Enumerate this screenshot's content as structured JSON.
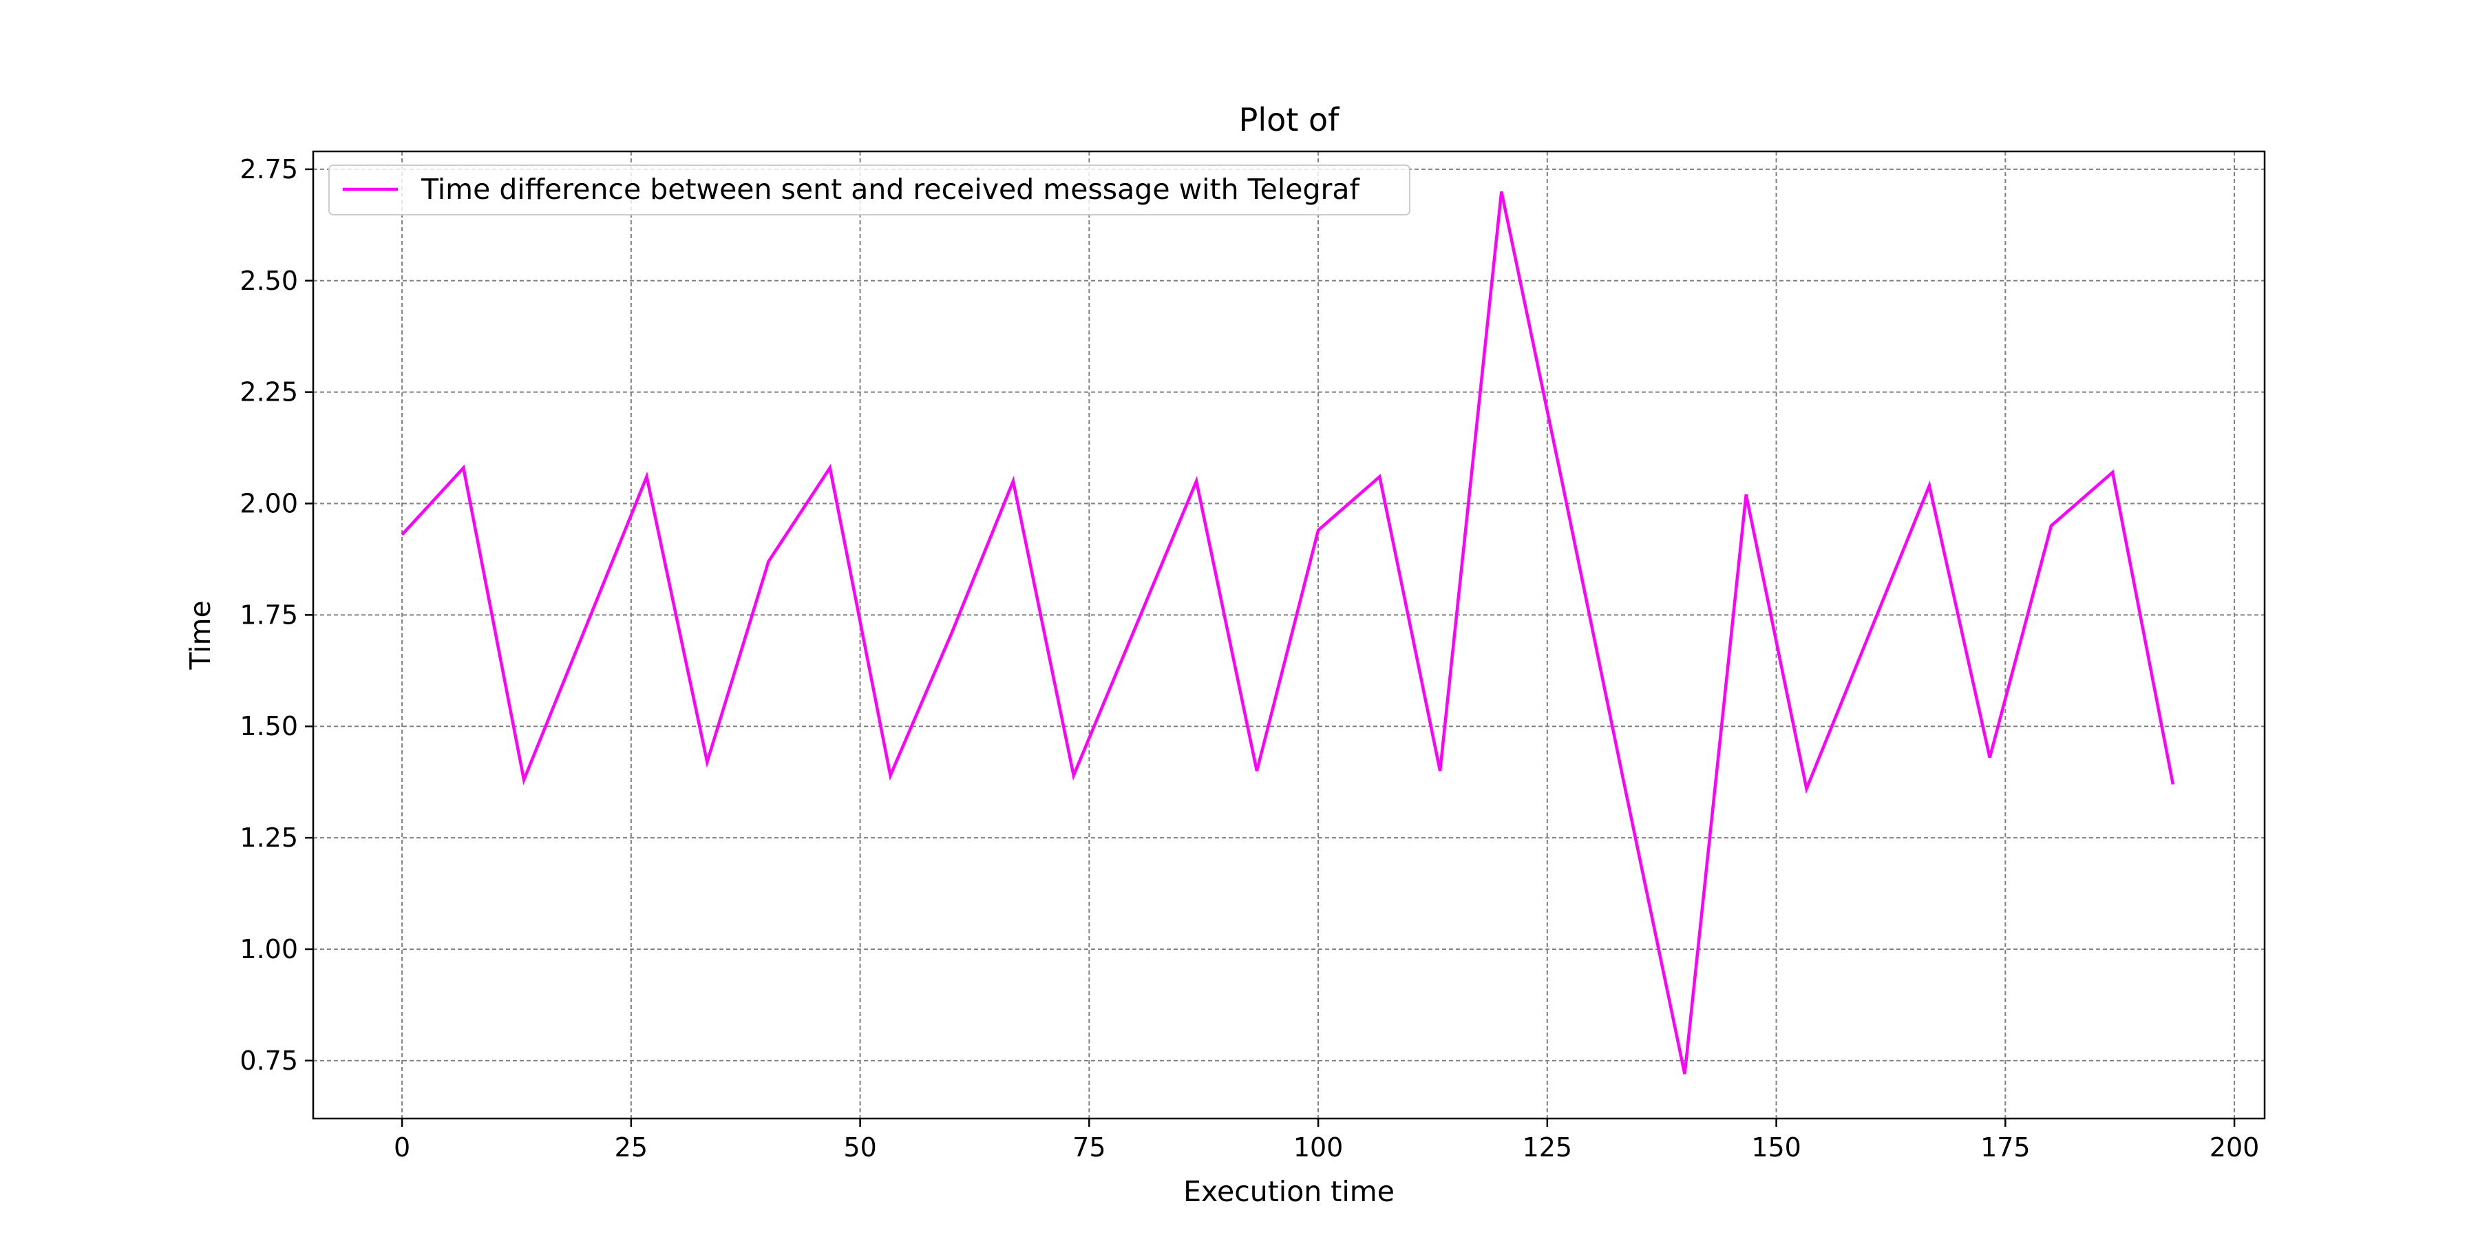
{
  "chart_data": {
    "type": "line",
    "title": "Plot of",
    "xlabel": "Execution time",
    "ylabel": "Time",
    "xlim": [
      -9.7,
      203.3
    ],
    "ylim": [
      0.62,
      2.79
    ],
    "grid": true,
    "legend_position": "top-left",
    "xticks": [
      0,
      25,
      50,
      75,
      100,
      125,
      150,
      175,
      200
    ],
    "xtick_labels": [
      "0",
      "25",
      "50",
      "75",
      "100",
      "125",
      "150",
      "175",
      "200"
    ],
    "yticks": [
      0.75,
      1.0,
      1.25,
      1.5,
      1.75,
      2.0,
      2.25,
      2.5,
      2.75
    ],
    "ytick_labels": [
      "0.75",
      "1.00",
      "1.25",
      "1.50",
      "1.75",
      "2.00",
      "2.25",
      "2.50",
      "2.75"
    ],
    "series": [
      {
        "name": "Time difference between sent and received message with Telegraf",
        "color": "#ff00ff",
        "x": [
          0,
          6.7,
          13.3,
          20,
          26.7,
          33.3,
          40,
          46.7,
          53.3,
          60,
          66.7,
          73.3,
          80,
          86.7,
          93.3,
          100,
          106.7,
          113.3,
          120,
          126.7,
          133.3,
          140,
          146.7,
          153.3,
          160,
          166.7,
          173.3,
          180,
          186.7,
          193.3
        ],
        "y": [
          1.93,
          2.08,
          1.38,
          1.72,
          2.06,
          1.42,
          1.87,
          2.08,
          1.39,
          1.71,
          2.05,
          1.39,
          1.72,
          2.05,
          1.4,
          1.94,
          2.06,
          1.4,
          2.7,
          2.04,
          1.38,
          0.72,
          2.02,
          1.36,
          1.7,
          2.04,
          1.43,
          1.95,
          2.07,
          1.37
        ]
      }
    ]
  }
}
